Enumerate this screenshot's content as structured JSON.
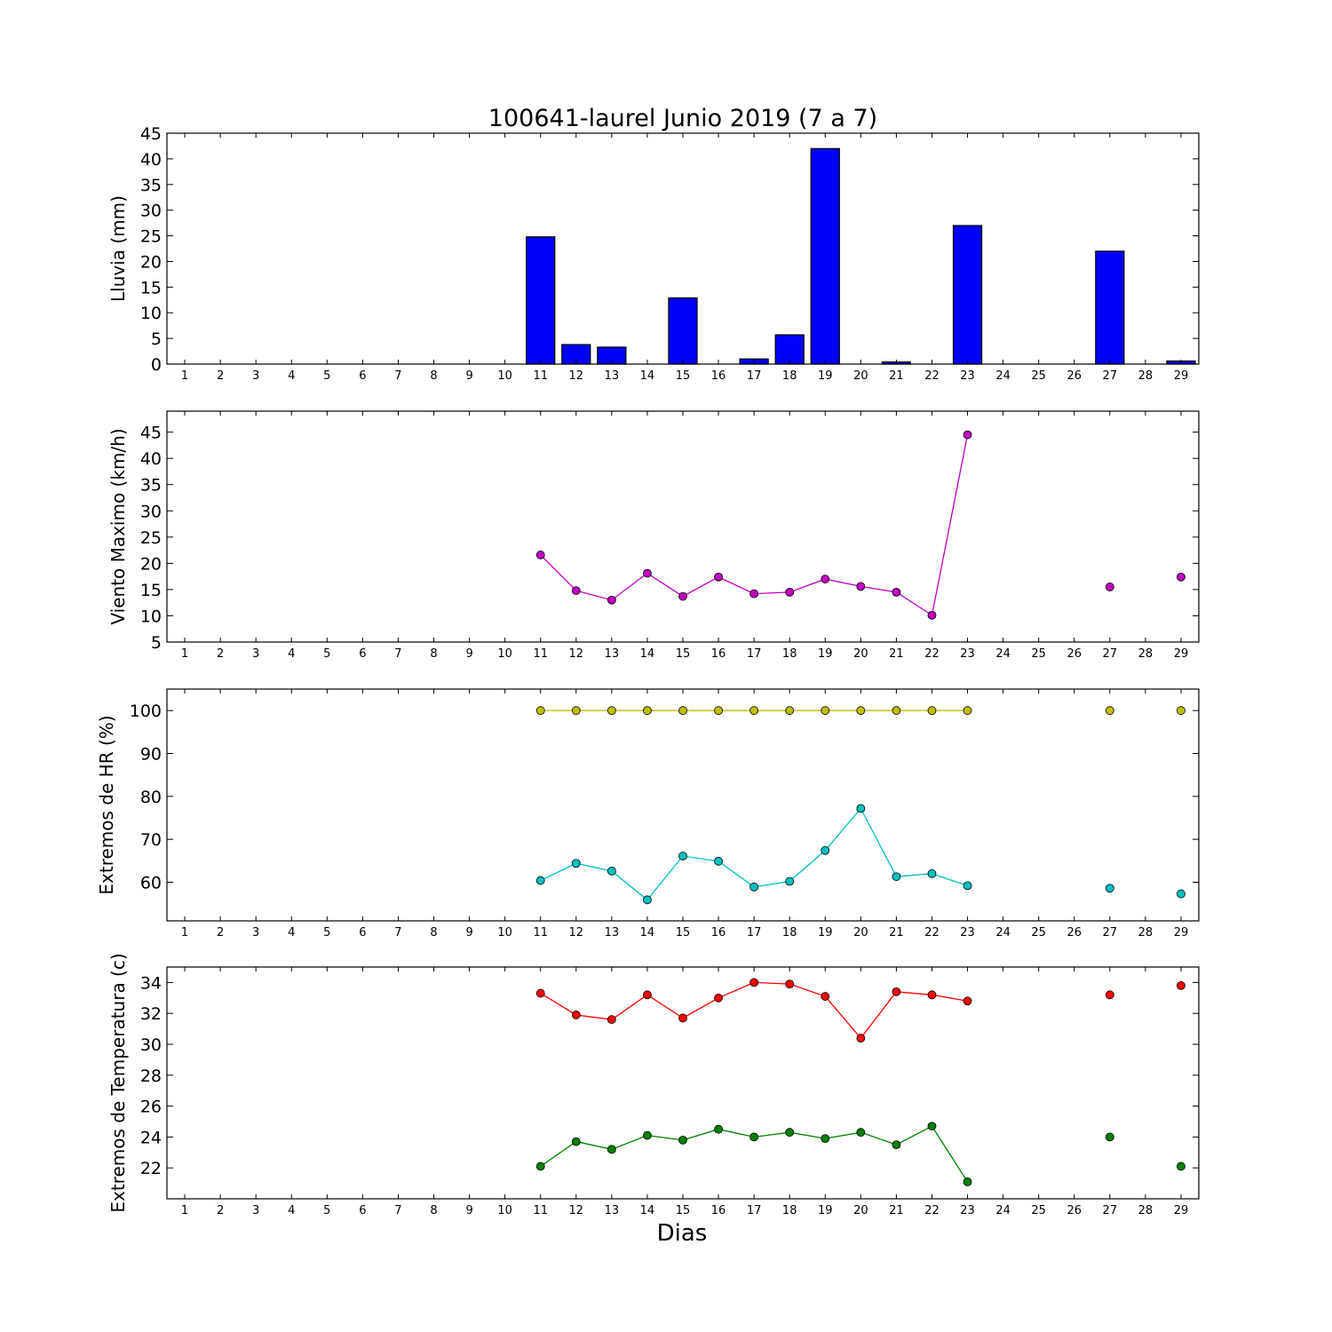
{
  "figure": {
    "title": "100641-laurel Junio 2019  (7 a 7)",
    "xlabel": "Dias"
  },
  "chart_data": [
    {
      "type": "bar",
      "ylabel": "Lluvia (mm)",
      "x_ticks": [
        1,
        2,
        3,
        4,
        5,
        6,
        7,
        8,
        9,
        10,
        11,
        12,
        13,
        14,
        15,
        16,
        17,
        18,
        19,
        20,
        21,
        22,
        23,
        24,
        25,
        26,
        27,
        28,
        29
      ],
      "xlim": [
        0.5,
        29.5
      ],
      "ylim": [
        0,
        45
      ],
      "y_ticks": [
        0,
        5,
        10,
        15,
        20,
        25,
        30,
        35,
        40,
        45
      ],
      "categories": [
        11,
        12,
        13,
        15,
        17,
        18,
        19,
        21,
        23,
        27,
        29
      ],
      "values": [
        24.8,
        3.8,
        3.3,
        12.9,
        1.0,
        5.7,
        42.0,
        0.4,
        27.0,
        22.0,
        0.6
      ],
      "color": "#0000ff"
    },
    {
      "type": "line",
      "ylabel": "Viento Maximo (km/h)",
      "x_ticks": [
        1,
        2,
        3,
        4,
        5,
        6,
        7,
        8,
        9,
        10,
        11,
        12,
        13,
        14,
        15,
        16,
        17,
        18,
        19,
        20,
        21,
        22,
        23,
        24,
        25,
        26,
        27,
        28,
        29
      ],
      "xlim": [
        0.5,
        29.5
      ],
      "ylim": [
        5,
        49
      ],
      "y_ticks": [
        5,
        10,
        15,
        20,
        25,
        30,
        35,
        40,
        45
      ],
      "series": [
        {
          "color": "#bf00bf",
          "segments": [
            {
              "x": [
                11,
                12,
                13,
                14,
                15,
                16,
                17,
                18,
                19,
                20,
                21,
                22,
                23
              ],
              "y": [
                21.6,
                14.8,
                13.0,
                18.1,
                13.7,
                17.4,
                14.2,
                14.5,
                17.0,
                15.6,
                14.5,
                10.1,
                44.5
              ]
            },
            {
              "x": [
                27
              ],
              "y": [
                15.5
              ]
            },
            {
              "x": [
                29
              ],
              "y": [
                17.4
              ]
            }
          ]
        }
      ]
    },
    {
      "type": "line",
      "ylabel": "Extremos de HR (%)",
      "x_ticks": [
        1,
        2,
        3,
        4,
        5,
        6,
        7,
        8,
        9,
        10,
        11,
        12,
        13,
        14,
        15,
        16,
        17,
        18,
        19,
        20,
        21,
        22,
        23,
        24,
        25,
        26,
        27,
        28,
        29
      ],
      "xlim": [
        0.5,
        29.5
      ],
      "ylim": [
        51,
        105
      ],
      "y_ticks": [
        60,
        70,
        80,
        90,
        100
      ],
      "series": [
        {
          "color": "#bfbf00",
          "segments": [
            {
              "x": [
                11,
                12,
                13,
                14,
                15,
                16,
                17,
                18,
                19,
                20,
                21,
                22,
                23
              ],
              "y": [
                100,
                100,
                100,
                100,
                100,
                100,
                100,
                100,
                100,
                100,
                100,
                100,
                100
              ]
            },
            {
              "x": [
                27
              ],
              "y": [
                100
              ]
            },
            {
              "x": [
                29
              ],
              "y": [
                100
              ]
            }
          ]
        },
        {
          "color": "#00bfbf",
          "segments": [
            {
              "x": [
                11,
                12,
                13,
                14,
                15,
                16,
                17,
                18,
                19,
                20,
                21,
                22,
                23
              ],
              "y": [
                60.4,
                64.4,
                62.6,
                55.9,
                66.1,
                64.9,
                58.9,
                60.2,
                67.4,
                77.2,
                61.3,
                62.0,
                59.2
              ]
            },
            {
              "x": [
                27
              ],
              "y": [
                58.6
              ]
            },
            {
              "x": [
                29
              ],
              "y": [
                57.3
              ]
            }
          ]
        }
      ]
    },
    {
      "type": "line",
      "ylabel": "Extremos de Temperatura (c)",
      "x_ticks": [
        1,
        2,
        3,
        4,
        5,
        6,
        7,
        8,
        9,
        10,
        11,
        12,
        13,
        14,
        15,
        16,
        17,
        18,
        19,
        20,
        21,
        22,
        23,
        24,
        25,
        26,
        27,
        28,
        29
      ],
      "xlim": [
        0.5,
        29.5
      ],
      "ylim": [
        20,
        35
      ],
      "y_ticks": [
        22,
        24,
        26,
        28,
        30,
        32,
        34
      ],
      "series": [
        {
          "color": "#ff0000",
          "segments": [
            {
              "x": [
                11,
                12,
                13,
                14,
                15,
                16,
                17,
                18,
                19,
                20,
                21,
                22,
                23
              ],
              "y": [
                33.3,
                31.9,
                31.6,
                33.2,
                31.7,
                33.0,
                34.0,
                33.9,
                33.1,
                30.4,
                33.4,
                33.2,
                32.8
              ]
            },
            {
              "x": [
                27
              ],
              "y": [
                33.2
              ]
            },
            {
              "x": [
                29
              ],
              "y": [
                33.8
              ]
            }
          ]
        },
        {
          "color": "#008000",
          "segments": [
            {
              "x": [
                11,
                12,
                13,
                14,
                15,
                16,
                17,
                18,
                19,
                20,
                21,
                22,
                23
              ],
              "y": [
                22.1,
                23.7,
                23.2,
                24.1,
                23.8,
                24.5,
                24.0,
                24.3,
                23.9,
                24.3,
                23.5,
                24.7,
                21.1
              ]
            },
            {
              "x": [
                27
              ],
              "y": [
                24.0
              ]
            },
            {
              "x": [
                29
              ],
              "y": [
                22.1
              ]
            }
          ]
        }
      ]
    }
  ]
}
